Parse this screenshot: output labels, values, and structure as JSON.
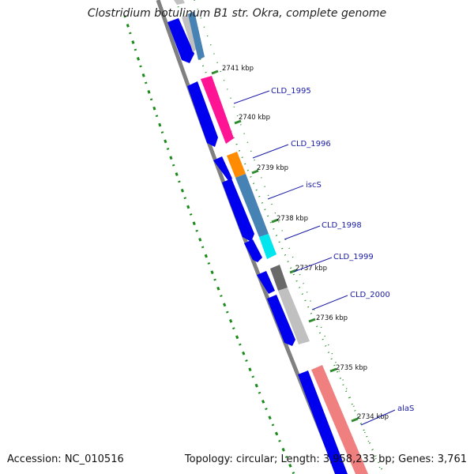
{
  "title": "Clostridium botulinum B1 str. Okra, complete genome",
  "footer": {
    "accession": "Accession: NC_010516",
    "summary": "Topology: circular; Length: 3,958,233 bp; Genes: 3,761"
  },
  "ruler": {
    "labels": [
      "2741 kbp",
      "2740 kbp",
      "2739 kbp",
      "2738 kbp",
      "2737 kbp",
      "2736 kbp",
      "2735 kbp",
      "2734 kbp"
    ]
  },
  "genes": [
    {
      "name": "CLD_1995",
      "color": "#ff1493"
    },
    {
      "name": "CLD_1996",
      "color": "#ff8c00"
    },
    {
      "name": "iscS",
      "color": "#4682b4"
    },
    {
      "name": "CLD_1998",
      "color": "#00e5ee"
    },
    {
      "name": "CLD_1999",
      "color": "#696969"
    },
    {
      "name": "CLD_2000",
      "color": "#c0c0c0"
    },
    {
      "name": "alaS",
      "color": "#f08080"
    }
  ],
  "colors": {
    "backbone": "#808080",
    "cds_strand": "#0000ee",
    "gc_dots": "#1a8a1a",
    "ticks": "#2e8b2e",
    "label_line": "#1a1aa6"
  }
}
